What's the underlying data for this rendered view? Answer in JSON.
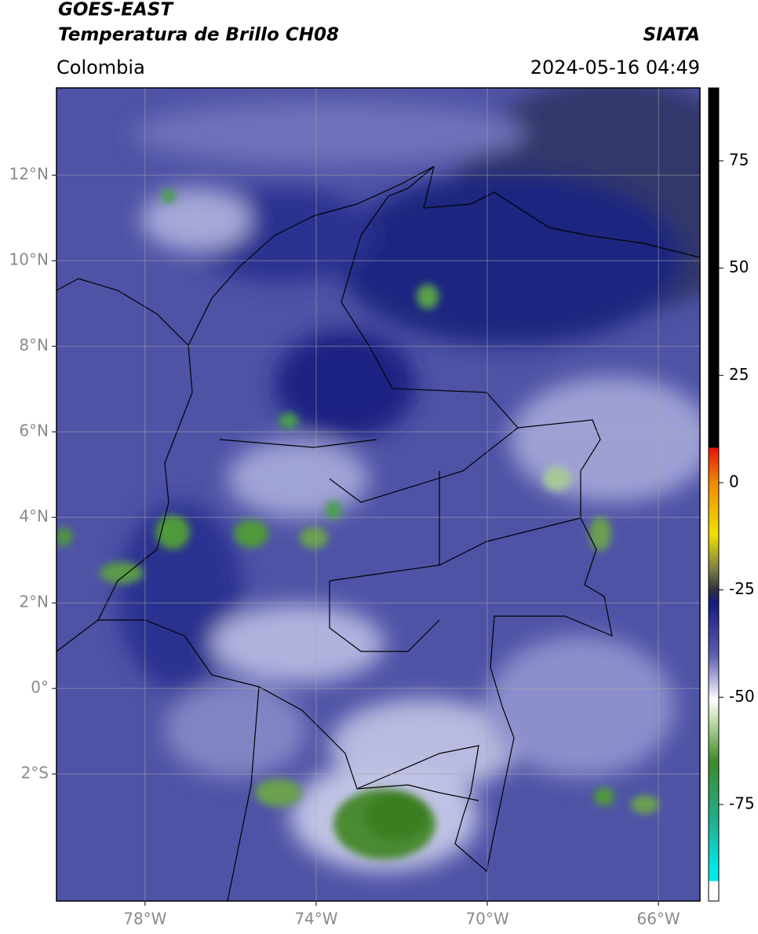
{
  "header": {
    "title": "GOES-EAST",
    "subtitle": "Temperatura de Brillo CH08",
    "source": "SIATA",
    "region": "Colombia",
    "timestamp": "2024-05-16 04:49"
  },
  "map": {
    "xlim": [
      -80.07,
      -65.03
    ],
    "ylim": [
      -4.97,
      14.04
    ],
    "xticks": [
      {
        "value": -78,
        "label": "78°W"
      },
      {
        "value": -74,
        "label": "74°W"
      },
      {
        "value": -70,
        "label": "70°W"
      },
      {
        "value": -66,
        "label": "66°W"
      }
    ],
    "yticks": [
      {
        "value": 12,
        "label": "12°N"
      },
      {
        "value": 10,
        "label": "10°N"
      },
      {
        "value": 8,
        "label": "8°N"
      },
      {
        "value": 6,
        "label": "6°N"
      },
      {
        "value": 4,
        "label": "4°N"
      },
      {
        "value": 2,
        "label": "2°N"
      },
      {
        "value": 0,
        "label": "0°"
      },
      {
        "value": -2,
        "label": "2°S"
      }
    ],
    "grid": true
  },
  "colorbar": {
    "lim": [
      -97.5,
      92
    ],
    "ticks": [
      -75,
      -50,
      -25,
      0,
      25,
      50,
      75
    ]
  }
}
